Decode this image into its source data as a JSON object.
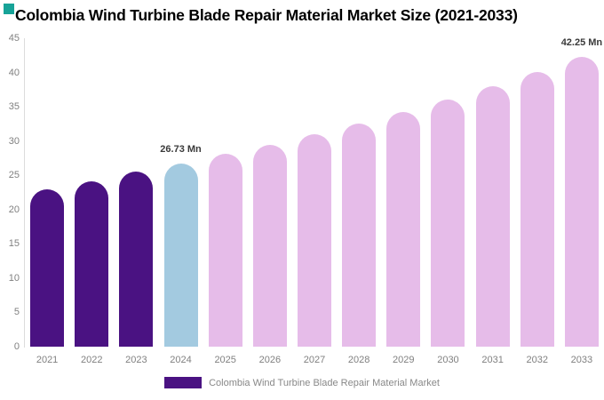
{
  "page": {
    "background_color": "#FFFFFF",
    "corner_accent_color": "#17A398"
  },
  "chart_data": {
    "type": "bar",
    "title": "Colombia Wind Turbine Blade Repair Material Market Size (2021-2033)",
    "categories": [
      "2021",
      "2022",
      "2023",
      "2024",
      "2025",
      "2026",
      "2027",
      "2028",
      "2029",
      "2030",
      "2031",
      "2032",
      "2033"
    ],
    "values": [
      22.9,
      24.1,
      25.5,
      26.73,
      28.1,
      29.5,
      31.0,
      32.6,
      34.3,
      36.1,
      38.0,
      40.1,
      42.25
    ],
    "unit": "Mn",
    "xlabel": "",
    "ylabel": "",
    "ylim": [
      0,
      45
    ],
    "y_ticks": [
      45,
      40,
      35,
      30,
      25,
      20,
      15,
      10,
      5,
      0
    ],
    "grid": false,
    "bar_groups": [
      "historical",
      "historical",
      "historical",
      "base-year",
      "forecast",
      "forecast",
      "forecast",
      "forecast",
      "forecast",
      "forecast",
      "forecast",
      "forecast",
      "forecast"
    ],
    "group_colors": {
      "historical": "#4A1282",
      "base-year": "#A3CAE0",
      "forecast": "#E6BCE9"
    },
    "data_labels": [
      {
        "category": "2024",
        "text": "26.73 Mn"
      },
      {
        "category": "2033",
        "text": "42.25 Mn"
      }
    ],
    "axis_line_color": "#DCDCDC",
    "tick_label_color": "#808080",
    "data_label_color": "#3A3A3A",
    "legend_position": "bottom",
    "legend": {
      "label": "Colombia Wind Turbine Blade Repair Material Market",
      "swatch_color": "#4A1282",
      "text_color": "#888888"
    }
  }
}
